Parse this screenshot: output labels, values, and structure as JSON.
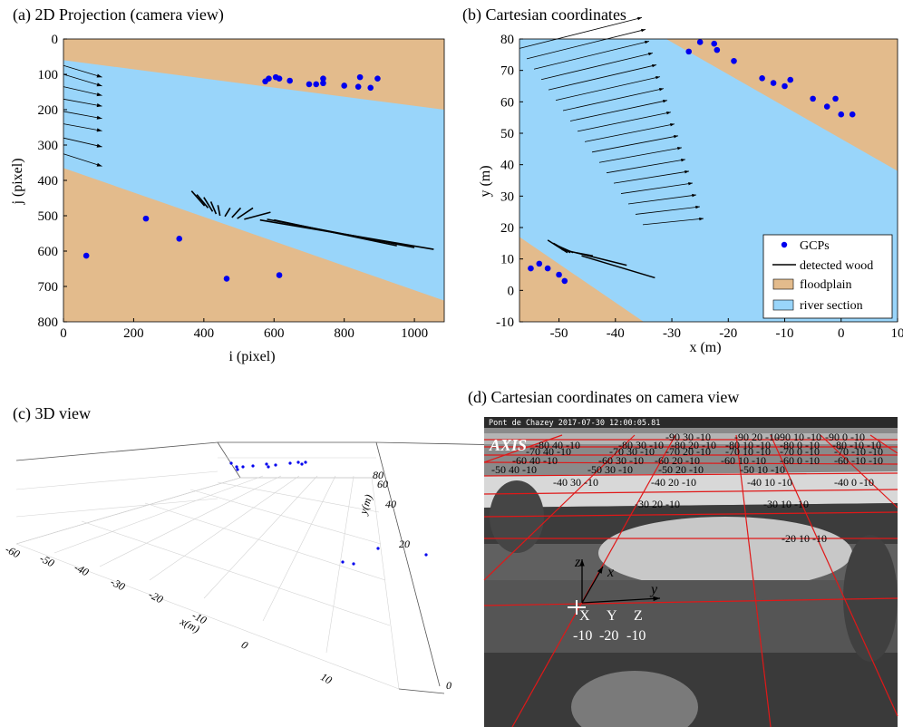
{
  "panels": {
    "a": {
      "title": "(a) 2D  Projection (camera view)",
      "xlabel": "i (pixel)",
      "ylabel": "j (pixel)"
    },
    "b": {
      "title": "(b) Cartesian coordinates",
      "xlabel": "x (m)",
      "ylabel": "y (m)"
    },
    "c": {
      "title": "(c) 3D view",
      "xlabel": "x(m)",
      "ylabel": "y(m)"
    },
    "d": {
      "title": "(d) Cartesian coordinates on camera view",
      "camera_label": "Pont de Chazey 2017-07-30 12:00:05.81",
      "logo": "AXIS",
      "axis_letters": [
        "X",
        "Y",
        "Z"
      ],
      "axis_values": [
        "-10",
        "-20",
        "-10"
      ],
      "arrow_labels": {
        "z": "z",
        "x": "x",
        "y": "y"
      }
    }
  },
  "legend": {
    "items": [
      {
        "label": "GCPs",
        "kind": "dot",
        "color": "#0000ee"
      },
      {
        "label": "detected wood",
        "kind": "line",
        "color": "#000000"
      },
      {
        "label": "floodplain",
        "kind": "patch",
        "color": "#e3bb8c"
      },
      {
        "label": "river section",
        "kind": "patch",
        "color": "#99d5fa"
      }
    ]
  },
  "colors": {
    "floodplain": "#e3bb8c",
    "river": "#99d5fa",
    "gcp": "#0000ee",
    "grid_red": "#e01818"
  },
  "chart_data": [
    {
      "type": "scatter",
      "panel": "a",
      "title": "(a) 2D  Projection (camera view)",
      "xlabel": "i (pixel)",
      "ylabel": "j (pixel)",
      "xlim": [
        0,
        1085
      ],
      "ylim": [
        800,
        0
      ],
      "y_inverted": true,
      "xticks": [
        0,
        200,
        400,
        600,
        800,
        1000
      ],
      "yticks": [
        0,
        100,
        200,
        300,
        400,
        500,
        600,
        700,
        800
      ],
      "river_polygon": [
        [
          0,
          60
        ],
        [
          1085,
          200
        ],
        [
          1085,
          740
        ],
        [
          0,
          365
        ]
      ],
      "gcps": [
        [
          575,
          120
        ],
        [
          585,
          112
        ],
        [
          605,
          108
        ],
        [
          615,
          112
        ],
        [
          645,
          118
        ],
        [
          700,
          128
        ],
        [
          720,
          128
        ],
        [
          740,
          125
        ],
        [
          740,
          112
        ],
        [
          800,
          132
        ],
        [
          840,
          135
        ],
        [
          845,
          108
        ],
        [
          875,
          138
        ],
        [
          895,
          112
        ],
        [
          235,
          508
        ],
        [
          330,
          565
        ],
        [
          465,
          678
        ],
        [
          615,
          668
        ],
        [
          65,
          613
        ]
      ],
      "flow_arrows": [
        [
          0,
          75,
          110,
          108
        ],
        [
          0,
          100,
          110,
          133
        ],
        [
          0,
          135,
          110,
          160
        ],
        [
          0,
          170,
          110,
          190
        ],
        [
          0,
          205,
          110,
          225
        ],
        [
          0,
          240,
          110,
          260
        ],
        [
          0,
          280,
          110,
          305
        ],
        [
          0,
          325,
          110,
          360
        ]
      ],
      "wood": [
        [
          [
            365,
            430
          ],
          [
            402,
            472
          ]
        ],
        [
          [
            380,
            440
          ],
          [
            412,
            478
          ]
        ],
        [
          [
            400,
            448
          ],
          [
            425,
            488
          ]
        ],
        [
          [
            420,
            460
          ],
          [
            435,
            495
          ]
        ],
        [
          [
            440,
            470
          ],
          [
            446,
            500
          ]
        ],
        [
          [
            460,
            502
          ],
          [
            475,
            478
          ]
        ],
        [
          [
            480,
            505
          ],
          [
            505,
            478
          ]
        ],
        [
          [
            495,
            508
          ],
          [
            540,
            478
          ]
        ],
        [
          [
            515,
            510
          ],
          [
            590,
            490
          ]
        ],
        [
          [
            560,
            512
          ],
          [
            1055,
            595
          ]
        ],
        [
          [
            580,
            510
          ],
          [
            1000,
            590
          ]
        ],
        [
          [
            600,
            512
          ],
          [
            950,
            585
          ]
        ]
      ]
    },
    {
      "type": "scatter",
      "panel": "b",
      "title": "(b) Cartesian coordinates",
      "xlabel": "x (m)",
      "ylabel": "y (m)",
      "xlim": [
        -57,
        10
      ],
      "ylim": [
        -10,
        80
      ],
      "xticks": [
        -50,
        -40,
        -30,
        -20,
        -10,
        0,
        10
      ],
      "yticks": [
        -10,
        0,
        10,
        20,
        30,
        40,
        50,
        60,
        70,
        80
      ],
      "river_polygon": [
        [
          -57,
          17
        ],
        [
          -57,
          80
        ],
        [
          -31,
          80
        ],
        [
          10,
          38
        ],
        [
          10,
          -10
        ],
        [
          -35,
          -10
        ]
      ],
      "gcps": [
        [
          -27,
          76
        ],
        [
          -25,
          79
        ],
        [
          -22.5,
          78.5
        ],
        [
          -22,
          76.5
        ],
        [
          -19,
          73
        ],
        [
          -14,
          67.5
        ],
        [
          -12,
          66
        ],
        [
          -10,
          65
        ],
        [
          -9,
          67
        ],
        [
          -5,
          61
        ],
        [
          -2.5,
          58.5
        ],
        [
          -1,
          61
        ],
        [
          0,
          56
        ],
        [
          2,
          56
        ],
        [
          -55,
          7
        ],
        [
          -53.5,
          8.5
        ],
        [
          -52,
          7
        ],
        [
          -50,
          5
        ],
        [
          -49,
          3
        ]
      ],
      "flow_arrows_count": 18,
      "wood": [
        [
          [
            -52,
            16
          ],
          [
            -48.5,
            12
          ]
        ],
        [
          [
            -51,
            15
          ],
          [
            -48,
            12
          ]
        ],
        [
          [
            -50,
            14
          ],
          [
            -47.5,
            12
          ]
        ],
        [
          [
            -49.5,
            13
          ],
          [
            -47,
            12
          ]
        ],
        [
          [
            -47,
            12
          ],
          [
            -44,
            11
          ]
        ],
        [
          [
            -47,
            12
          ],
          [
            -38,
            8
          ]
        ],
        [
          [
            -46,
            11
          ],
          [
            -33,
            4
          ]
        ]
      ],
      "legend_position": "bottom-right"
    },
    {
      "type": "scatter",
      "panel": "c",
      "title": "(c) 3D view",
      "xlabel": "x(m)",
      "ylabel": "y(m)",
      "x_ticks": [
        -60,
        -50,
        -40,
        -30,
        -20,
        -10,
        0,
        10
      ],
      "y_ticks": [
        0,
        20,
        40,
        60,
        80
      ],
      "gcps": [
        [
          255,
          511
        ],
        [
          261,
          515
        ],
        [
          262,
          518
        ],
        [
          268,
          515
        ],
        [
          279,
          514
        ],
        [
          294,
          512
        ],
        [
          296,
          515
        ],
        [
          304,
          513
        ],
        [
          320,
          511
        ],
        [
          329,
          510
        ],
        [
          333,
          512
        ],
        [
          337,
          510
        ],
        [
          378,
          620
        ],
        [
          390,
          622
        ],
        [
          417,
          605
        ],
        [
          470,
          612
        ]
      ]
    },
    {
      "type": "other",
      "panel": "d",
      "title": "(d) Cartesian coordinates on camera view",
      "grid_labels": [
        {
          "t": "-90 30 -10",
          "x": 734,
          "y": 486
        },
        {
          "t": "-90 20 -10",
          "x": 810,
          "y": 486
        },
        {
          "t": "-90 10 -10",
          "x": 856,
          "y": 486
        },
        {
          "t": "-90 0 -10",
          "x": 910,
          "y": 486
        },
        {
          "t": "-80 40 -10",
          "x": 590,
          "y": 495
        },
        {
          "t": "-80 30 -10",
          "x": 682,
          "y": 495
        },
        {
          "t": "-80 20 -10",
          "x": 740,
          "y": 495
        },
        {
          "t": "-80 10 -10",
          "x": 800,
          "y": 495
        },
        {
          "t": "-80 0 -10",
          "x": 860,
          "y": 495
        },
        {
          "t": "-80 -10 -10",
          "x": 918,
          "y": 495
        },
        {
          "t": "-70 40 -10",
          "x": 580,
          "y": 502
        },
        {
          "t": "-70 30 -10",
          "x": 672,
          "y": 502
        },
        {
          "t": "-70 20 -10",
          "x": 734,
          "y": 502
        },
        {
          "t": "-70 10 -10",
          "x": 800,
          "y": 502
        },
        {
          "t": "-70 0 -10",
          "x": 860,
          "y": 502
        },
        {
          "t": "-70 -10 -10",
          "x": 920,
          "y": 502
        },
        {
          "t": "-60 40 -10",
          "x": 565,
          "y": 512
        },
        {
          "t": "-60 30 -10",
          "x": 660,
          "y": 512
        },
        {
          "t": "-60 20 -10",
          "x": 722,
          "y": 512
        },
        {
          "t": "-60 10 -10",
          "x": 795,
          "y": 512
        },
        {
          "t": "-60 0 -10",
          "x": 860,
          "y": 512
        },
        {
          "t": "-60 -10 -10",
          "x": 920,
          "y": 512
        },
        {
          "t": "-50 40 -10",
          "x": 542,
          "y": 522
        },
        {
          "t": "-50 30 -10",
          "x": 648,
          "y": 522
        },
        {
          "t": "-50 20 -10",
          "x": 726,
          "y": 522
        },
        {
          "t": "-50 10 -10",
          "x": 816,
          "y": 522
        },
        {
          "t": "-40 30 -10",
          "x": 610,
          "y": 536
        },
        {
          "t": "-40 20 -10",
          "x": 718,
          "y": 536
        },
        {
          "t": "-40 10 -10",
          "x": 824,
          "y": 536
        },
        {
          "t": "-40 0 -10",
          "x": 920,
          "y": 536
        },
        {
          "t": "-30 20 -10",
          "x": 700,
          "y": 560
        },
        {
          "t": "-30 10 -10",
          "x": 842,
          "y": 560
        },
        {
          "t": "-20 10 -10",
          "x": 862,
          "y": 598
        }
      ]
    }
  ]
}
